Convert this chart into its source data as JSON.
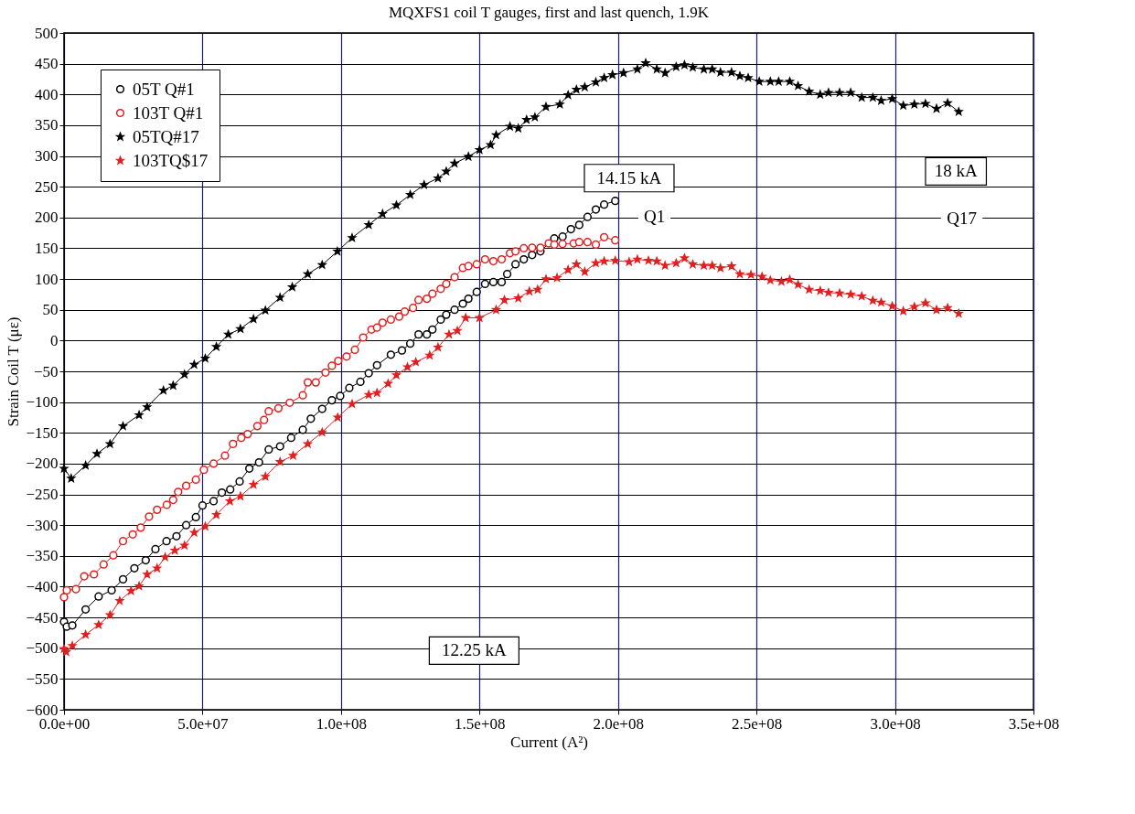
{
  "chart_data": {
    "type": "line",
    "title": "MQXFS1 coil T gauges, first and last quench, 1.9K",
    "xlabel": "Current (A²)",
    "ylabel": "Strain Coil T (με)",
    "xlim": [
      0,
      350000000.0
    ],
    "ylim": [
      -600,
      500
    ],
    "xticks": [
      {
        "value": 0,
        "label": "0.0e+00"
      },
      {
        "value": 50000000.0,
        "label": "5.0e+07"
      },
      {
        "value": 100000000.0,
        "label": "1.0e+08"
      },
      {
        "value": 150000000.0,
        "label": "1.5e+08"
      },
      {
        "value": 200000000.0,
        "label": "2.0e+08"
      },
      {
        "value": 250000000.0,
        "label": "2.5e+08"
      },
      {
        "value": 300000000.0,
        "label": "3.0e+08"
      },
      {
        "value": 350000000.0,
        "label": "3.5e+08"
      }
    ],
    "yticks": [
      -600,
      -550,
      -500,
      -450,
      -400,
      -350,
      -300,
      -250,
      -200,
      -150,
      -100,
      -50,
      0,
      50,
      100,
      150,
      200,
      250,
      300,
      350,
      400,
      450,
      500
    ],
    "grid": true,
    "legend": "top left",
    "line_style": "solid",
    "annotations": [
      "14.15 kA",
      "Q1",
      "18 kA",
      "Q17",
      "12.25 kA"
    ],
    "series": [
      {
        "name": "05T Q#1",
        "color": "#000000",
        "marker": "circle",
        "x": [
          0,
          1000000.0,
          3000000.0,
          7800000.0,
          12500000.0,
          17200000.0,
          21300000.0,
          25400000.0,
          29500000.0,
          33000000.0,
          37000000.0,
          40600000.0,
          44100000.0,
          47600000.0,
          50000000.0,
          54000000.0,
          57000000.0,
          60000000.0,
          63400000.0,
          66900000.0,
          70400000.0,
          73900000.0,
          78000000.0,
          82000000.0,
          86200000.0,
          89100000.0,
          93200000.0,
          96700000.0,
          99700000.0,
          103000000.0,
          107000000.0,
          110000000.0,
          113000000.0,
          118000000.0,
          122000000.0,
          125000000.0,
          128000000.0,
          131000000.0,
          133000000.0,
          136000000.0,
          138000000.0,
          141000000.0,
          144000000.0,
          146000000.0,
          149000000.0,
          152000000.0,
          155000000.0,
          158000000.0,
          160000000.0,
          163000000.0,
          166000000.0,
          169000000.0,
          172000000.0,
          177000000.0,
          180000000.0,
          183000000.0,
          186000000.0,
          189000000.0,
          192000000.0,
          195000000.0,
          199000000.0
        ],
        "values": [
          -457,
          -465,
          -463,
          -437,
          -416,
          -406,
          -388,
          -370,
          -357,
          -339,
          -326,
          -318,
          -300,
          -287,
          -268,
          -261,
          -247,
          -242,
          -229,
          -208,
          -198,
          -177,
          -172,
          -158,
          -145,
          -127,
          -111,
          -97,
          -90,
          -77,
          -67,
          -53,
          -40,
          -23,
          -16,
          -5,
          10,
          10,
          18,
          34,
          42,
          50,
          60,
          68,
          79,
          92,
          95,
          95,
          108,
          124,
          132,
          139,
          145,
          166,
          169,
          181,
          188,
          201,
          213,
          221,
          227
        ]
      },
      {
        "name": "103T Q#1",
        "color": "#e02020",
        "marker": "circle",
        "x": [
          0,
          1000000.0,
          4300000.0,
          7300000.0,
          10800000.0,
          14300000.0,
          17800000.0,
          21300000.0,
          24800000.0,
          27700000.0,
          30700000.0,
          33600000.0,
          37100000.0,
          39400000.0,
          41200000.0,
          44100000.0,
          47600000.0,
          50500000.0,
          54000000.0,
          58100000.0,
          61000000.0,
          64000000.0,
          66300000.0,
          69800000.0,
          72200000.0,
          73900000.0,
          77400000.0,
          81500000.0,
          86200000.0,
          88000000.0,
          90900000.0,
          94400000.0,
          96700000.0,
          99000000.0,
          102000000.0,
          105000000.0,
          108000000.0,
          111000000.0,
          113000000.0,
          115000000.0,
          118000000.0,
          121000000.0,
          123000000.0,
          126000000.0,
          128000000.0,
          131000000.0,
          133000000.0,
          136000000.0,
          138000000.0,
          141000000.0,
          144000000.0,
          146000000.0,
          149000000.0,
          152000000.0,
          155000000.0,
          158000000.0,
          161000000.0,
          163000000.0,
          166000000.0,
          169000000.0,
          172000000.0,
          175000000.0,
          177000000.0,
          180000000.0,
          184000000.0,
          186000000.0,
          189000000.0,
          192000000.0,
          195000000.0,
          199000000.0
        ],
        "values": [
          -417,
          -406,
          -404,
          -383,
          -380,
          -364,
          -349,
          -326,
          -315,
          -304,
          -286,
          -275,
          -267,
          -259,
          -246,
          -236,
          -226,
          -210,
          -200,
          -187,
          -168,
          -158,
          -152,
          -139,
          -129,
          -115,
          -110,
          -101,
          -89,
          -68,
          -68,
          -52,
          -41,
          -33,
          -26,
          -15,
          5,
          18,
          21,
          29,
          34,
          39,
          47,
          53,
          66,
          68,
          76,
          84,
          92,
          103,
          118,
          121,
          124,
          132,
          129,
          132,
          142,
          145,
          150,
          151,
          151,
          158,
          156,
          157,
          158,
          160,
          160,
          156,
          168,
          163
        ]
      },
      {
        "name": "05TQ#17",
        "color": "#000000",
        "marker": "star",
        "x": [
          0,
          2600000.0,
          7800000.0,
          11900000.0,
          16600000.0,
          21300000.0,
          27100000.0,
          30000000.0,
          35900000.0,
          39400000.0,
          43500000.0,
          47000000.0,
          51000000.0,
          55000000.0,
          59300000.0,
          63700000.0,
          68400000.0,
          72700000.0,
          78000000.0,
          82400000.0,
          88000000.0,
          93200000.0,
          98700000.0,
          104000000.0,
          110000000.0,
          115000000.0,
          120000000.0,
          125000000.0,
          130000000.0,
          135000000.0,
          138000000.0,
          141000000.0,
          146000000.0,
          150000000.0,
          154000000.0,
          156000000.0,
          161000000.0,
          164000000.0,
          167000000.0,
          170000000.0,
          174000000.0,
          179000000.0,
          182000000.0,
          185000000.0,
          188000000.0,
          192000000.0,
          195000000.0,
          198000000.0,
          202000000.0,
          207000000.0,
          210000000.0,
          214000000.0,
          217000000.0,
          221000000.0,
          224000000.0,
          227000000.0,
          231000000.0,
          234000000.0,
          237000000.0,
          241000000.0,
          244000000.0,
          247000000.0,
          251000000.0,
          255000000.0,
          258000000.0,
          262000000.0,
          265000000.0,
          269000000.0,
          273000000.0,
          276000000.0,
          280000000.0,
          284000000.0,
          288000000.0,
          292000000.0,
          295000000.0,
          299000000.0,
          303000000.0,
          307000000.0,
          311000000.0,
          315000000.0,
          319000000.0,
          323000000.0
        ],
        "values": [
          -208,
          -224,
          -203,
          -184,
          -168,
          -139,
          -121,
          -108,
          -81,
          -73,
          -55,
          -39,
          -29,
          -10,
          10,
          19,
          35,
          49,
          70,
          87,
          108,
          123,
          145,
          167,
          188,
          206,
          220,
          237,
          253,
          264,
          275,
          288,
          299,
          310,
          318,
          334,
          348,
          345,
          359,
          363,
          380,
          384,
          399,
          408,
          412,
          420,
          427,
          432,
          435,
          441,
          451,
          441,
          435,
          445,
          448,
          444,
          441,
          441,
          436,
          436,
          430,
          427,
          421,
          421,
          421,
          421,
          414,
          405,
          400,
          403,
          403,
          403,
          395,
          395,
          390,
          393,
          382,
          384,
          385,
          377,
          386,
          372
        ]
      },
      {
        "name": "103TQ$17",
        "color": "#e02020",
        "marker": "star",
        "x": [
          0,
          800000.0,
          3000000.0,
          7800000.0,
          12500000.0,
          16600000.0,
          20100000.0,
          24200000.0,
          27100000.0,
          30000000.0,
          33600000.0,
          36500000.0,
          40000000.0,
          43500000.0,
          47000000.0,
          51000000.0,
          55000000.0,
          59900000.0,
          63700000.0,
          68400000.0,
          72700000.0,
          78000000.0,
          82700000.0,
          88000000.0,
          93200000.0,
          98800000.0,
          104000000.0,
          110000000.0,
          113000000.0,
          117000000.0,
          120000000.0,
          124000000.0,
          127000000.0,
          132000000.0,
          135000000.0,
          139000000.0,
          142000000.0,
          145000000.0,
          150000000.0,
          156000000.0,
          159000000.0,
          164000000.0,
          168000000.0,
          171000000.0,
          174000000.0,
          178000000.0,
          182000000.0,
          185000000.0,
          188000000.0,
          192000000.0,
          195000000.0,
          199000000.0,
          204000000.0,
          207000000.0,
          211000000.0,
          214000000.0,
          217000000.0,
          221000000.0,
          224000000.0,
          227000000.0,
          231000000.0,
          234000000.0,
          237000000.0,
          241000000.0,
          244000000.0,
          248000000.0,
          252000000.0,
          255000000.0,
          259000000.0,
          262000000.0,
          265000000.0,
          269000000.0,
          273000000.0,
          276000000.0,
          280000000.0,
          284000000.0,
          288000000.0,
          292000000.0,
          295000000.0,
          299000000.0,
          303000000.0,
          307000000.0,
          311000000.0,
          315000000.0,
          319000000.0,
          323000000.0
        ],
        "values": [
          -501,
          -506,
          -496,
          -478,
          -462,
          -446,
          -423,
          -407,
          -399,
          -380,
          -370,
          -352,
          -341,
          -333,
          -312,
          -302,
          -283,
          -261,
          -253,
          -234,
          -221,
          -197,
          -187,
          -168,
          -149,
          -125,
          -103,
          -88,
          -85,
          -70,
          -56,
          -43,
          -35,
          -24,
          -11,
          10,
          16,
          37,
          37,
          50,
          66,
          69,
          80,
          83,
          100,
          102,
          115,
          124,
          112,
          126,
          129,
          130,
          128,
          132,
          130,
          129,
          122,
          126,
          134,
          124,
          122,
          122,
          118,
          121,
          108,
          107,
          104,
          98,
          96,
          99,
          91,
          83,
          81,
          78,
          77,
          75,
          72,
          65,
          62,
          56,
          48,
          55,
          61,
          50,
          53,
          44
        ]
      }
    ]
  }
}
